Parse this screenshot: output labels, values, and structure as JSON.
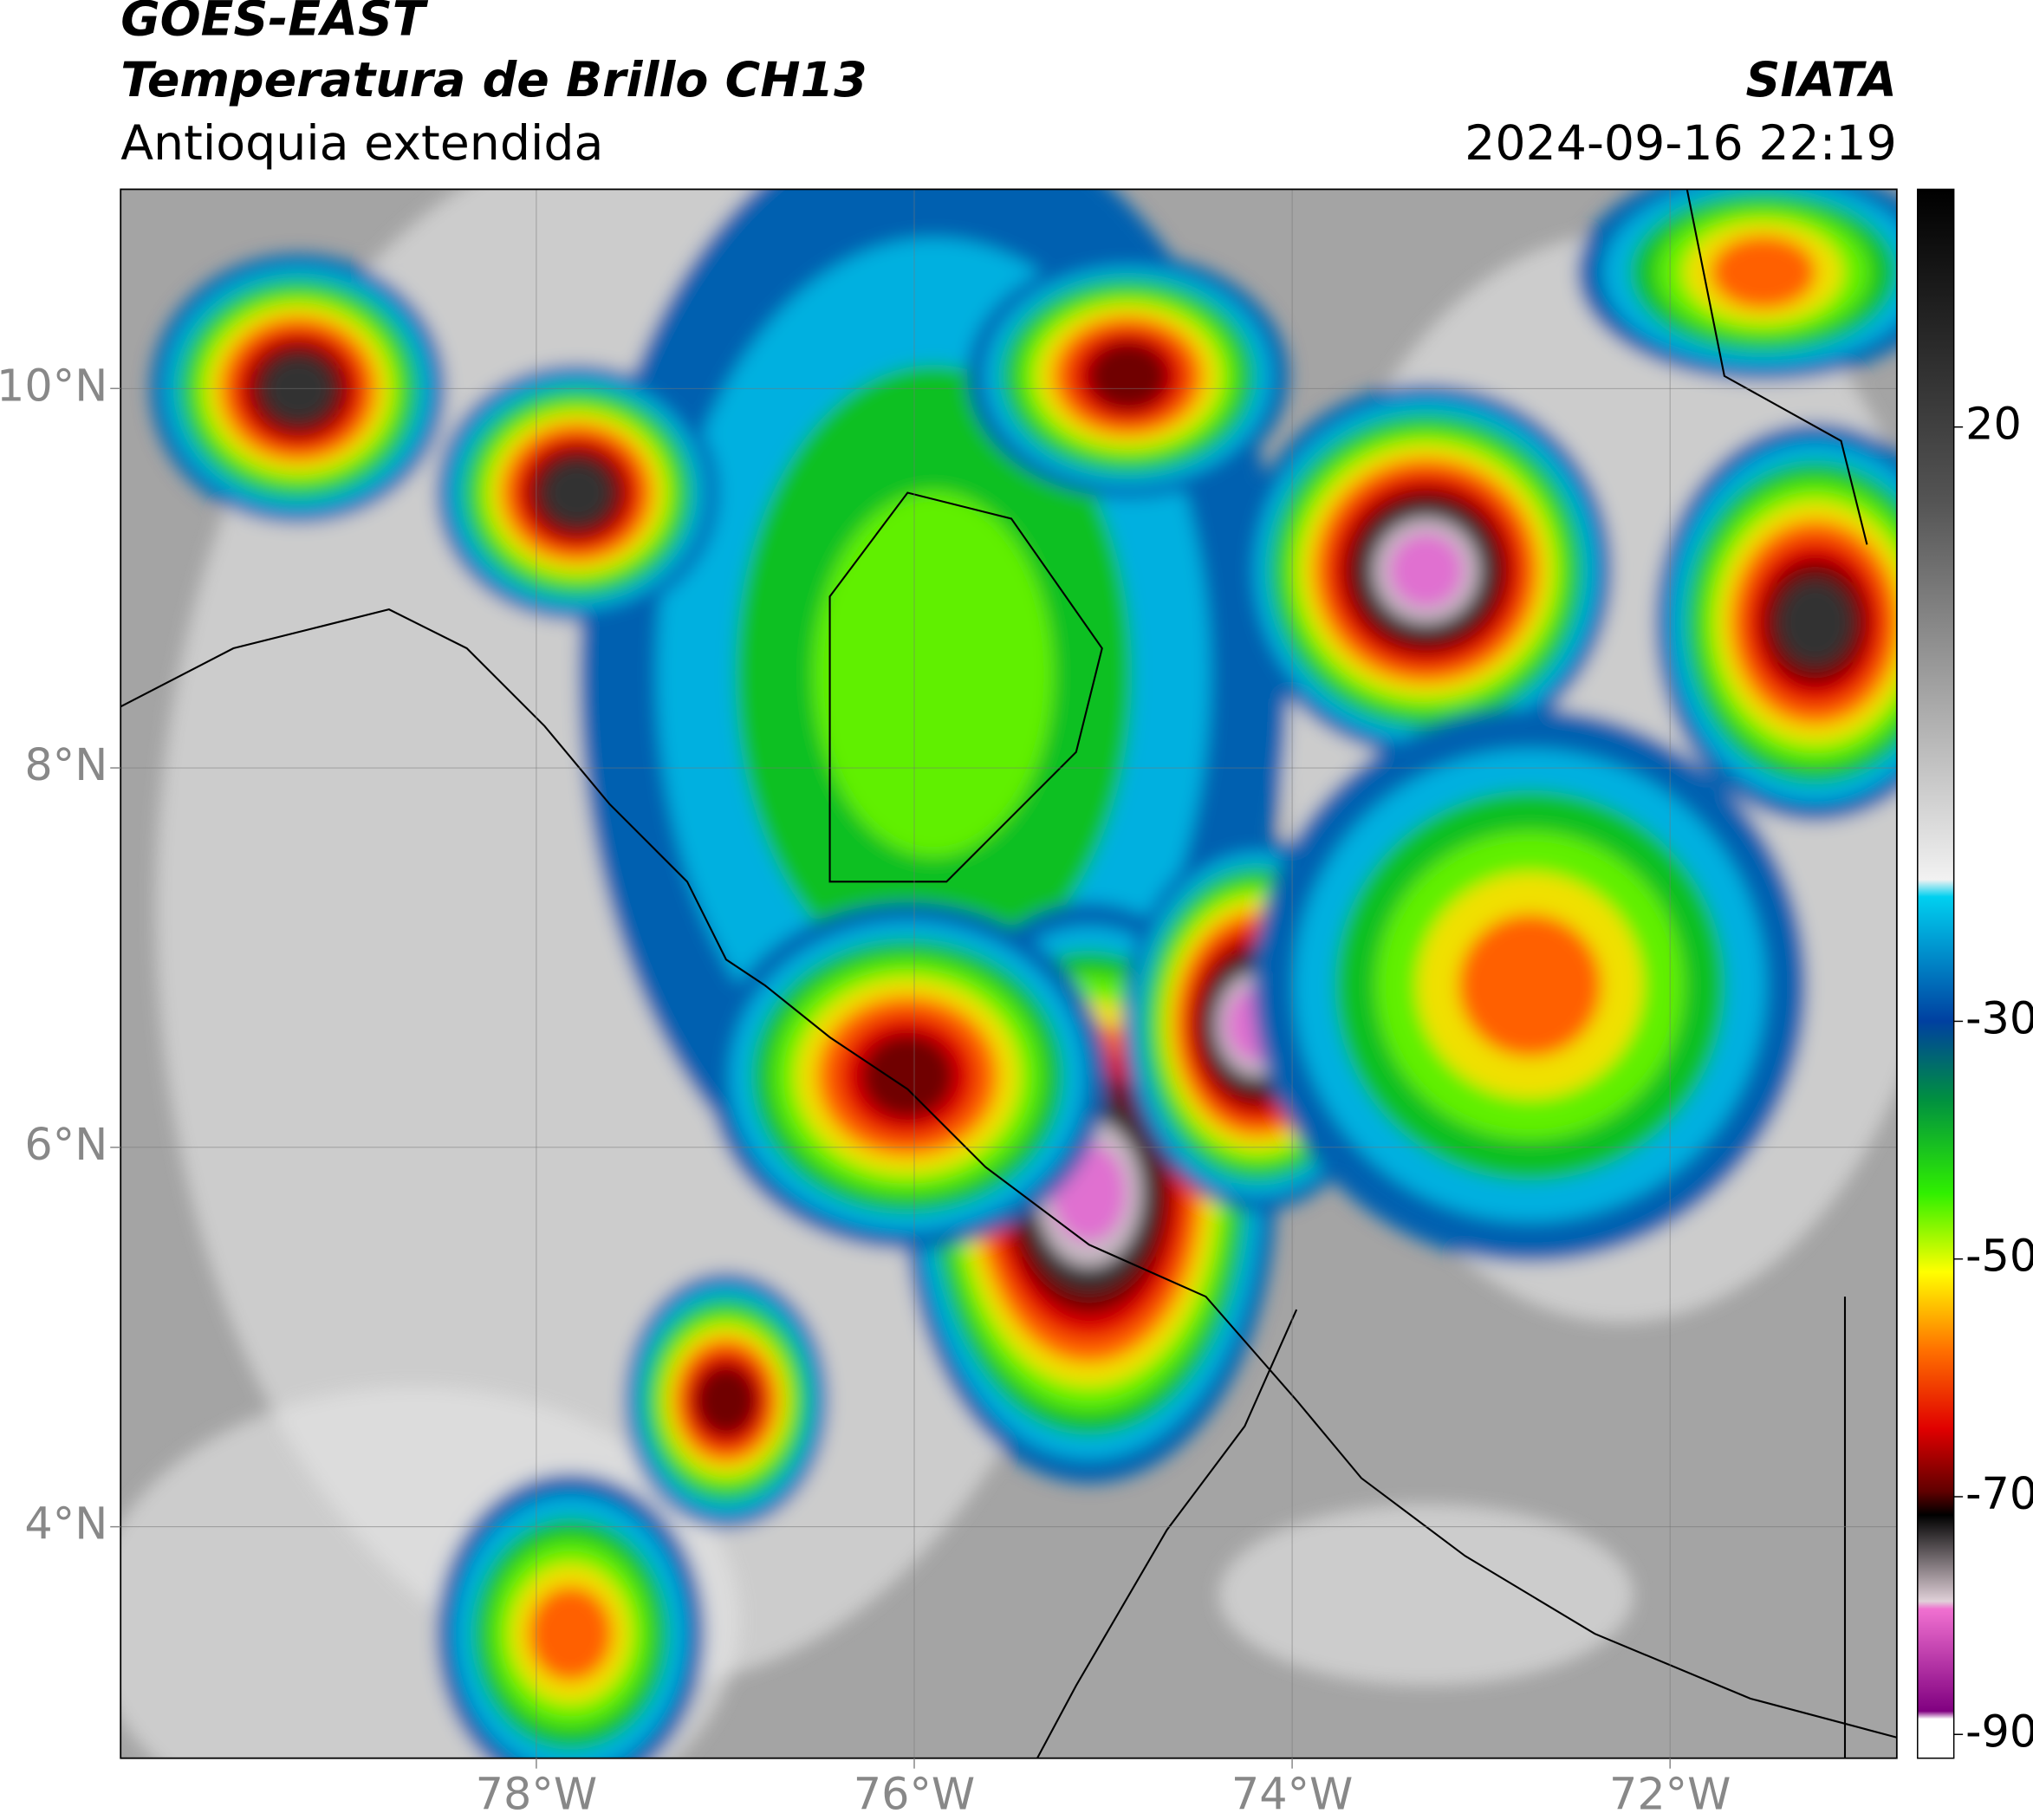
{
  "header": {
    "title": "GOES-EAST",
    "subtitle": "Temperatura de Brillo CH13",
    "region": "Antioquia extendida",
    "source": "SIATA",
    "timestamp": "2024-09-16 22:19"
  },
  "map": {
    "xlim": [
      -80.2,
      -70.8
    ],
    "ylim": [
      2.78,
      11.05
    ],
    "xticks": [
      {
        "value": -78,
        "label": "78°W"
      },
      {
        "value": -76,
        "label": "76°W"
      },
      {
        "value": -74,
        "label": "74°W"
      },
      {
        "value": -72,
        "label": "72°W"
      }
    ],
    "yticks": [
      {
        "value": 4,
        "label": "4°N"
      },
      {
        "value": 6,
        "label": "6°N"
      },
      {
        "value": 8,
        "label": "8°N"
      },
      {
        "value": 10,
        "label": "10°N"
      }
    ]
  },
  "colorbar": {
    "lim": [
      -92,
      40
    ],
    "ticks": [
      20,
      -30,
      -50,
      -70,
      -90
    ]
  }
}
